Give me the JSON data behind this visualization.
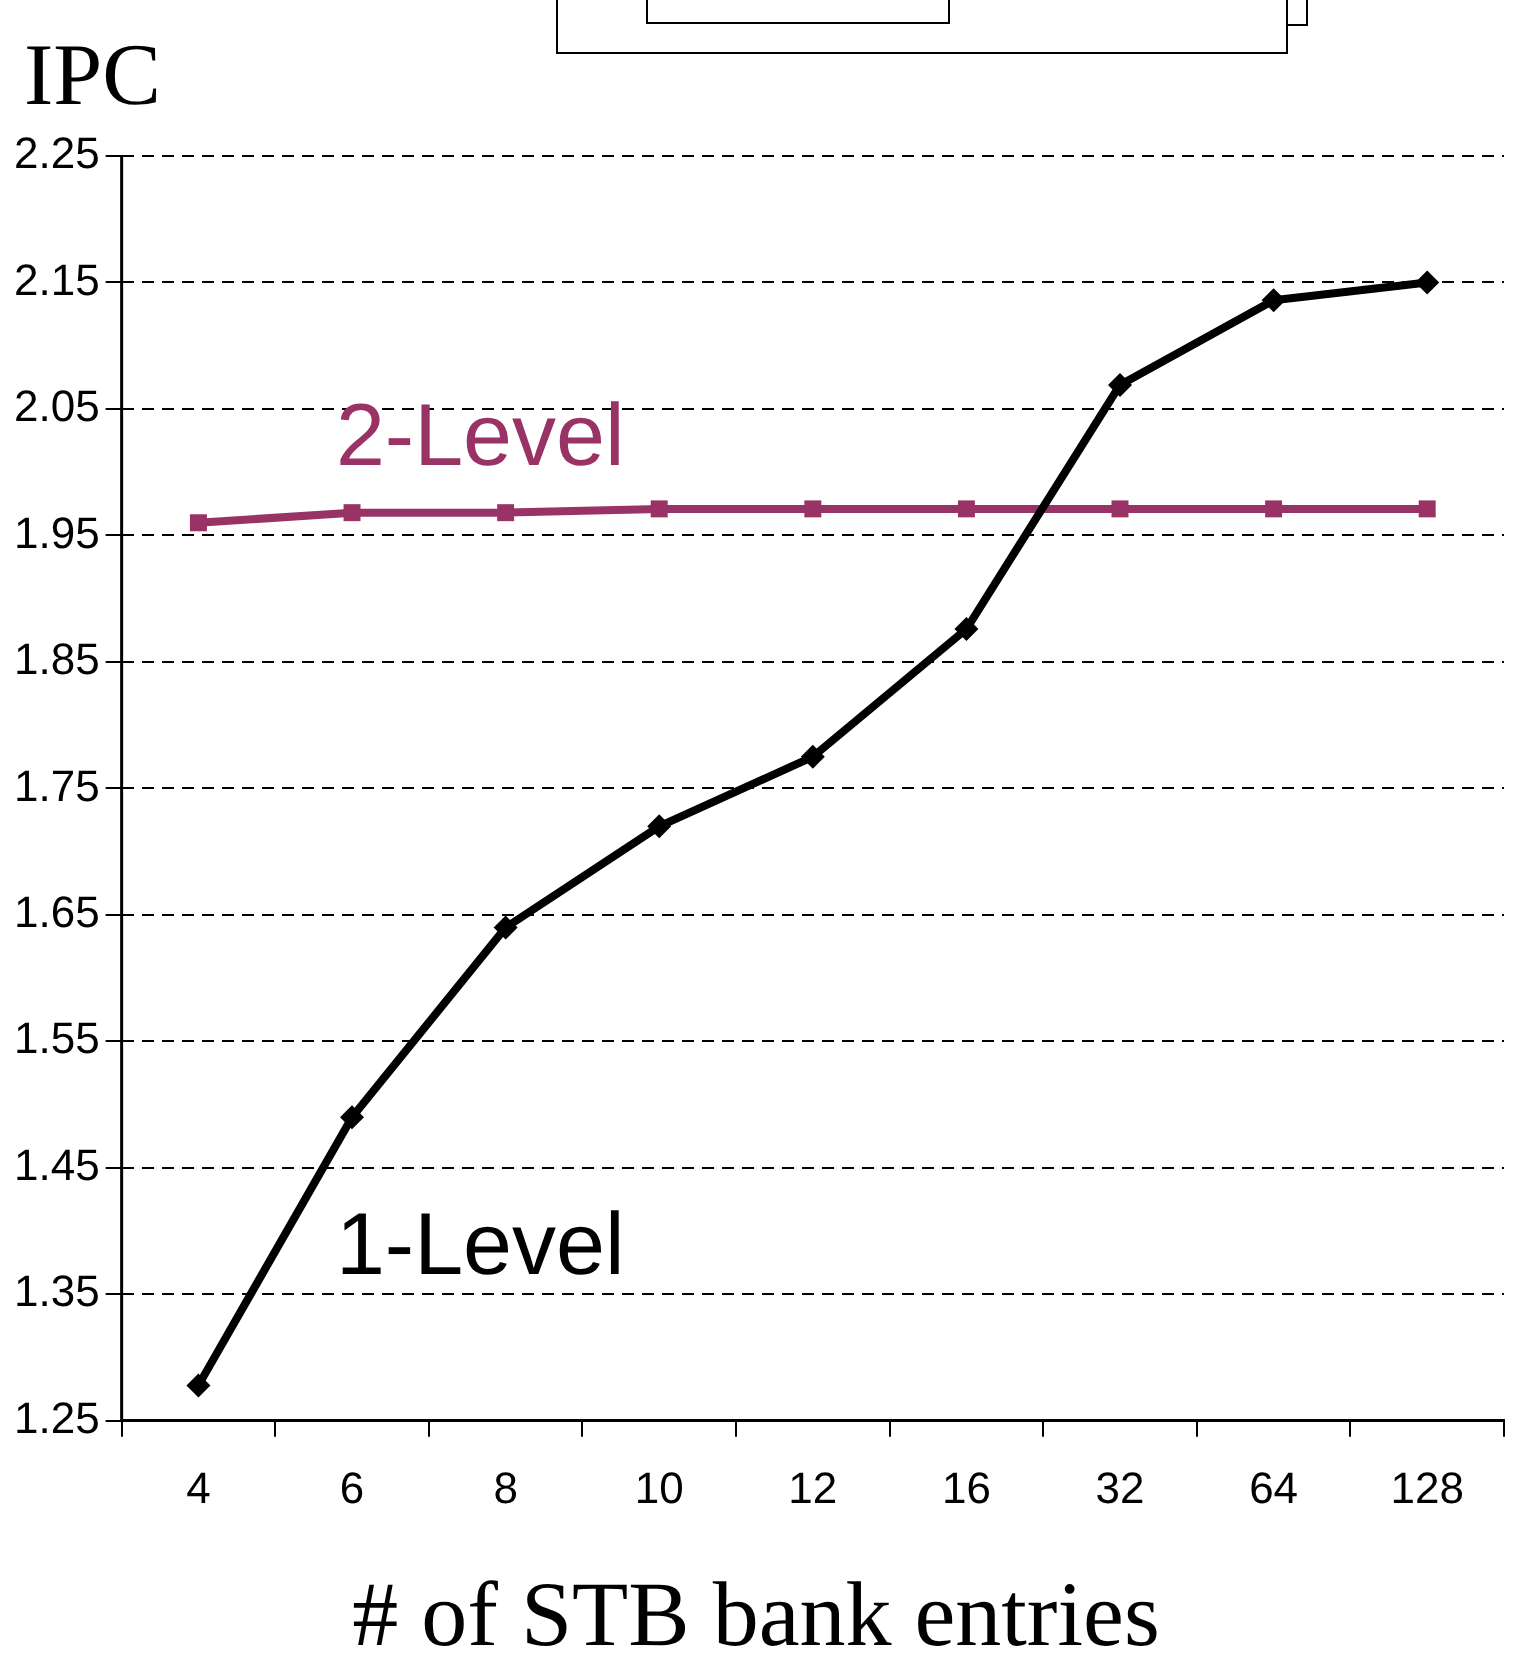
{
  "chart_data": {
    "type": "line",
    "ylabel": "IPC",
    "xlabel": "# of STB bank entries",
    "categories": [
      "4",
      "6",
      "8",
      "10",
      "12",
      "16",
      "32",
      "64",
      "128"
    ],
    "series": [
      {
        "name": "1-Level",
        "color": "#000000",
        "marker": "diamond",
        "values": [
          1.278,
          1.49,
          1.64,
          1.72,
          1.775,
          1.876,
          2.069,
          2.136,
          2.15
        ]
      },
      {
        "name": "2-Level",
        "color": "#993366",
        "marker": "square",
        "values": [
          1.96,
          1.968,
          1.968,
          1.971,
          1.971,
          1.971,
          1.971,
          1.971,
          1.971
        ]
      }
    ],
    "ylim": [
      1.25,
      2.25
    ],
    "yticks": [
      1.25,
      1.35,
      1.45,
      1.55,
      1.65,
      1.75,
      1.85,
      1.95,
      2.05,
      2.15,
      2.25
    ],
    "grid": "y",
    "line_style": "solid",
    "legend": false
  }
}
